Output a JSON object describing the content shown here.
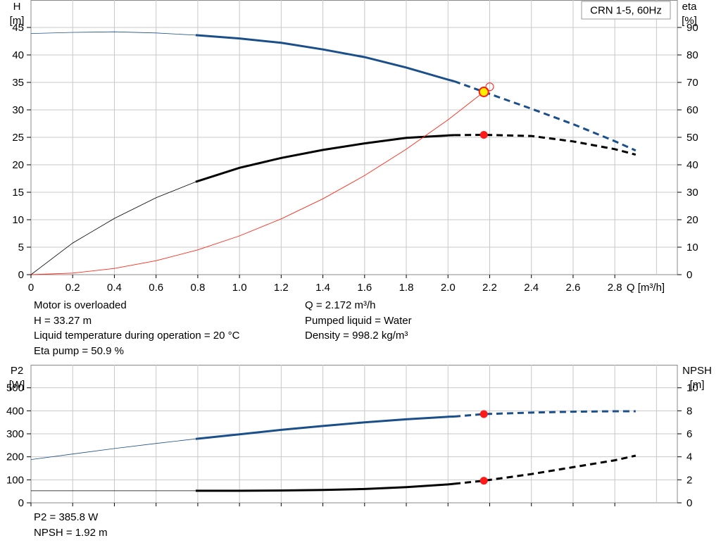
{
  "legend": "CRN 1-5, 60Hz",
  "colors": {
    "head": "#1b4f8a",
    "efficiency": "#000000",
    "system": "#ff2a1a",
    "point": "#ff1a1a",
    "highlight": "#ffee00",
    "grid": "#c8c8c8"
  },
  "info_top_left": [
    "Motor is overloaded",
    "H = 33.27 m",
    "Liquid temperature during operation = 20 °C",
    "Eta pump = 50.9 %"
  ],
  "info_top_right": [
    "Q = 2.172 m³/h",
    "Pumped liquid = Water",
    "Density = 998.2 kg/m³"
  ],
  "info_bottom": [
    "P2 = 385.8 W",
    "NPSH = 1.92 m"
  ],
  "chart_data": [
    {
      "type": "line",
      "name": "pump-curves",
      "x_label": "Q [m³/h]",
      "y_left_label": [
        "H",
        "[m]"
      ],
      "y_right_label": [
        "eta",
        "[%]"
      ],
      "xlim": [
        0,
        3.1
      ],
      "ylim_left": [
        0,
        50
      ],
      "ylim_right": [
        0,
        100
      ],
      "x_ticks": [
        "0",
        "0.2",
        "0.4",
        "0.6",
        "0.8",
        "1.0",
        "1.2",
        "1.4",
        "1.6",
        "1.8",
        "2.0",
        "2.2",
        "2.4",
        "2.6",
        "2.8"
      ],
      "y_left_ticks": [
        "0",
        "5",
        "10",
        "15",
        "20",
        "25",
        "30",
        "35",
        "40",
        "45"
      ],
      "y_right_ticks": [
        "0",
        "10",
        "20",
        "30",
        "40",
        "50",
        "60",
        "70",
        "80",
        "90"
      ],
      "grid": true,
      "series": [
        {
          "key": "head",
          "axis": "left",
          "x": [
            0,
            0.2,
            0.4,
            0.6,
            0.79,
            1.0,
            1.2,
            1.4,
            1.6,
            1.8,
            2.0,
            2.03,
            2.172,
            2.4,
            2.6,
            2.8,
            2.9
          ],
          "y": [
            43.9,
            44.1,
            44.2,
            44.0,
            43.6,
            43.0,
            42.2,
            41.0,
            39.6,
            37.7,
            35.5,
            35.2,
            33.27,
            30.2,
            27.4,
            24.3,
            22.6
          ],
          "thin_until": 0.79,
          "dashed_from": 2.03
        },
        {
          "key": "efficiency",
          "axis": "right",
          "x": [
            0,
            0.2,
            0.4,
            0.6,
            0.79,
            1.0,
            1.2,
            1.4,
            1.6,
            1.8,
            2.0,
            2.03,
            2.172,
            2.4,
            2.6,
            2.8,
            2.9
          ],
          "y": [
            0,
            11.5,
            20.5,
            28,
            33.8,
            38.9,
            42.5,
            45.4,
            47.8,
            49.8,
            50.7,
            50.8,
            50.9,
            50.5,
            48.5,
            45.7,
            43.7
          ],
          "thin_until": 0.79,
          "dashed_from": 2.03
        },
        {
          "key": "system",
          "axis": "left",
          "x": [
            0,
            0.2,
            0.4,
            0.6,
            0.8,
            1.0,
            1.2,
            1.4,
            1.6,
            1.8,
            2.0,
            2.172
          ],
          "y": [
            0,
            0.28,
            1.13,
            2.54,
            4.51,
            7.05,
            10.15,
            13.81,
            18.04,
            22.83,
            28.19,
            33.27
          ],
          "thin_until": 2.2,
          "dashed_from": 9
        }
      ],
      "duty_points": [
        {
          "x": 2.172,
          "y": 33.27,
          "axis": "left",
          "style": "highlight"
        },
        {
          "x": 2.172,
          "y": 50.9,
          "axis": "right",
          "style": "point"
        },
        {
          "x": 2.2,
          "y": 34.2,
          "axis": "left",
          "style": "open"
        }
      ]
    },
    {
      "type": "line",
      "name": "power-npsh",
      "y_left_label": [
        "P2",
        "[W]"
      ],
      "y_right_label": [
        "NPSH",
        "[m]"
      ],
      "xlim": [
        0,
        3.1
      ],
      "ylim_left": [
        0,
        600
      ],
      "ylim_right": [
        0,
        12
      ],
      "y_left_ticks": [
        "0",
        "100",
        "200",
        "300",
        "400",
        "500"
      ],
      "y_right_ticks": [
        "0",
        "2",
        "4",
        "6",
        "8",
        "10"
      ],
      "grid": true,
      "series": [
        {
          "key": "head",
          "axis": "left",
          "x": [
            0,
            0.2,
            0.4,
            0.6,
            0.79,
            1.0,
            1.2,
            1.4,
            1.6,
            1.8,
            2.0,
            2.03,
            2.172,
            2.4,
            2.6,
            2.8,
            2.9
          ],
          "y": [
            188,
            212,
            236,
            258,
            278,
            298,
            317,
            334,
            350,
            363,
            374,
            375,
            385.8,
            392,
            396,
            398,
            398
          ],
          "thin_until": 0.79,
          "dashed_from": 2.03
        },
        {
          "key": "efficiency",
          "axis": "right",
          "x": [
            0,
            0.79,
            1.0,
            1.2,
            1.4,
            1.6,
            1.8,
            2.0,
            2.03,
            2.172,
            2.4,
            2.6,
            2.8,
            2.9
          ],
          "y": [
            1.05,
            1.05,
            1.05,
            1.07,
            1.12,
            1.2,
            1.36,
            1.6,
            1.65,
            1.92,
            2.5,
            3.1,
            3.7,
            4.1
          ],
          "thin_until": 0.79,
          "dashed_from": 2.03
        }
      ],
      "duty_points": [
        {
          "x": 2.172,
          "y": 385.8,
          "axis": "left",
          "style": "point"
        },
        {
          "x": 2.172,
          "y": 1.92,
          "axis": "right",
          "style": "point"
        }
      ]
    }
  ]
}
